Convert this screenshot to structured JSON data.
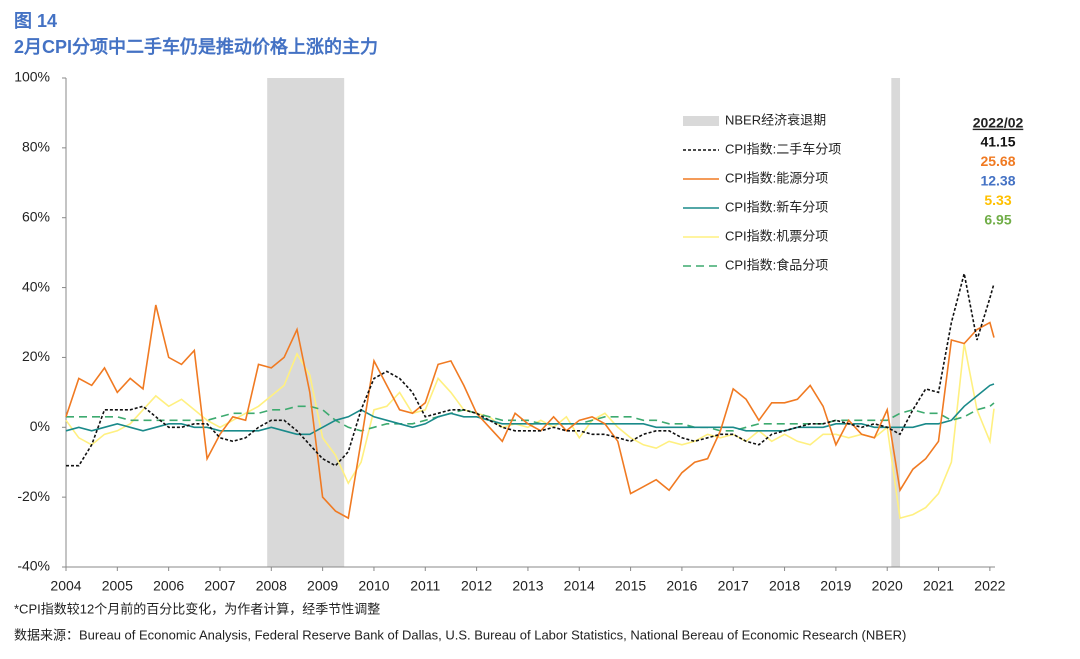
{
  "header": {
    "title": "图 14",
    "subtitle": "2月CPI分项中二手车仍是推动价格上涨的主力"
  },
  "chart_data": {
    "type": "line",
    "x": [
      2004,
      2004.25,
      2004.5,
      2004.75,
      2005,
      2005.25,
      2005.5,
      2005.75,
      2006,
      2006.25,
      2006.5,
      2006.75,
      2007,
      2007.25,
      2007.5,
      2007.75,
      2008,
      2008.25,
      2008.5,
      2008.75,
      2009,
      2009.25,
      2009.5,
      2009.75,
      2010,
      2010.25,
      2010.5,
      2010.75,
      2011,
      2011.25,
      2011.5,
      2011.75,
      2012,
      2012.25,
      2012.5,
      2012.75,
      2013,
      2013.25,
      2013.5,
      2013.75,
      2014,
      2014.25,
      2014.5,
      2014.75,
      2015,
      2015.25,
      2015.5,
      2015.75,
      2016,
      2016.25,
      2016.5,
      2016.75,
      2017,
      2017.25,
      2017.5,
      2017.75,
      2018,
      2018.25,
      2018.5,
      2018.75,
      2019,
      2019.25,
      2019.5,
      2019.75,
      2020,
      2020.25,
      2020.5,
      2020.75,
      2021,
      2021.25,
      2021.5,
      2021.75,
      2022,
      2022.08
    ],
    "series": [
      {
        "name": "CPI指数:二手车分项",
        "color": "#111111",
        "dash": "3,2",
        "label_color": "#111111",
        "values": [
          -11,
          -11,
          -5,
          5,
          5,
          5,
          6,
          3,
          0,
          0,
          1,
          1,
          -3,
          -4,
          -3,
          0,
          2,
          2,
          -1,
          -5,
          -9,
          -11,
          -7,
          5,
          14,
          16,
          14,
          10,
          3,
          4,
          5,
          5,
          4,
          2,
          0,
          -1,
          -1,
          -1,
          0,
          -1,
          -1,
          -2,
          -2,
          -3,
          -4,
          -2,
          -1,
          -1,
          -3,
          -4,
          -3,
          -2,
          -2,
          -4,
          -5,
          -2,
          -1,
          0,
          1,
          1,
          2,
          1,
          0,
          1,
          0,
          -2,
          5,
          11,
          10,
          30,
          44,
          25,
          37,
          41.15
        ]
      },
      {
        "name": "CPI指数:能源分项",
        "color": "#f07a22",
        "dash": "",
        "label_color": "#f07a22",
        "values": [
          3,
          14,
          12,
          17,
          10,
          14,
          11,
          35,
          20,
          18,
          22,
          -9,
          -2,
          3,
          2,
          18,
          17,
          20,
          28,
          10,
          -20,
          -24,
          -26,
          -4,
          19,
          12,
          5,
          4,
          7,
          18,
          19,
          12,
          4,
          0,
          -4,
          4,
          1,
          -1,
          3,
          -1,
          2,
          3,
          1,
          -4,
          -19,
          -17,
          -15,
          -18,
          -13,
          -10,
          -9,
          -1,
          11,
          8,
          2,
          7,
          7,
          8,
          12,
          6,
          -5,
          2,
          -2,
          -3,
          5,
          -18,
          -12,
          -9,
          -4,
          25,
          24,
          28,
          30,
          25.68
        ]
      },
      {
        "name": "CPI指数:新车分项",
        "color": "#1a8a8a",
        "dash": "",
        "label_color": "#4472c4",
        "values": [
          -1,
          0,
          -1,
          0,
          1,
          0,
          -1,
          0,
          1,
          1,
          0,
          0,
          -1,
          -1,
          -1,
          -1,
          0,
          -1,
          -2,
          -2,
          0,
          2,
          3,
          5,
          3,
          2,
          1,
          0,
          1,
          3,
          4,
          3,
          3,
          2,
          1,
          1,
          1,
          1,
          1,
          1,
          1,
          1,
          1,
          1,
          1,
          1,
          0,
          0,
          0,
          0,
          0,
          0,
          0,
          -1,
          -1,
          -1,
          -1,
          0,
          0,
          0,
          1,
          1,
          1,
          0,
          0,
          0,
          0,
          1,
          1,
          2,
          6,
          9,
          12,
          12.38
        ]
      },
      {
        "name": "CPI指数:机票分项",
        "color": "#fff080",
        "dash": "",
        "label_color": "#ffc000",
        "values": [
          2,
          -3,
          -5,
          -2,
          -1,
          1,
          5,
          9,
          6,
          8,
          5,
          2,
          0,
          2,
          4,
          6,
          9,
          12,
          21,
          15,
          -3,
          -8,
          -16,
          -10,
          5,
          6,
          10,
          4,
          5,
          14,
          10,
          5,
          4,
          3,
          0,
          1,
          0,
          2,
          0,
          3,
          -3,
          2,
          4,
          0,
          -3,
          -5,
          -6,
          -4,
          -5,
          -4,
          -2,
          -3,
          -2,
          -4,
          -1,
          -4,
          -2,
          -4,
          -5,
          -2,
          -2,
          -3,
          -2,
          -3,
          0,
          -26,
          -25,
          -23,
          -19,
          -10,
          24,
          5,
          -4,
          5.33
        ]
      },
      {
        "name": "CPI指数:食品分项",
        "color": "#3daa6f",
        "dash": "8,5",
        "label_color": "#70ad47",
        "values": [
          3,
          3,
          3,
          3,
          3,
          2,
          2,
          2,
          2,
          2,
          2,
          2,
          3,
          4,
          4,
          4,
          5,
          5,
          6,
          6,
          5,
          2,
          0,
          -1,
          0,
          1,
          1,
          1,
          2,
          3,
          4,
          5,
          4,
          3,
          2,
          2,
          2,
          1,
          1,
          1,
          1,
          2,
          3,
          3,
          3,
          2,
          2,
          1,
          1,
          0,
          0,
          -1,
          -1,
          0,
          1,
          1,
          1,
          1,
          1,
          1,
          2,
          2,
          2,
          2,
          2,
          4,
          5,
          4,
          4,
          2,
          3,
          5,
          6,
          6.95
        ]
      }
    ],
    "recession_name": "NBER经济衰退期",
    "recessions": [
      [
        2007.92,
        2009.42
      ],
      [
        2020.08,
        2020.25
      ]
    ],
    "latest_label": "2022/02",
    "xlim": [
      2004,
      2022.1
    ],
    "xticks": [
      2004,
      2005,
      2006,
      2007,
      2008,
      2009,
      2010,
      2011,
      2012,
      2013,
      2014,
      2015,
      2016,
      2017,
      2018,
      2019,
      2020,
      2021,
      2022
    ],
    "ylim": [
      -40,
      100
    ],
    "yticks": [
      {
        "value": -40,
        "label": "-40%"
      },
      {
        "value": -20,
        "label": "-20%"
      },
      {
        "value": 0,
        "label": "0%"
      },
      {
        "value": 20,
        "label": "20%"
      },
      {
        "value": 40,
        "label": "40%"
      },
      {
        "value": 60,
        "label": "60%"
      },
      {
        "value": 80,
        "label": "80%"
      },
      {
        "value": 100,
        "label": "100%"
      }
    ],
    "legend": "upper right",
    "grid": false
  },
  "footer": {
    "note": "*CPI指数较12个月前的百分比变化，为作者计算，经季节性调整",
    "source": "数据来源：Bureau of Economic Analysis, Federal Reserve Bank of Dallas, U.S. Bureau of Labor Statistics, National Bereau of Economic Research (NBER)"
  }
}
